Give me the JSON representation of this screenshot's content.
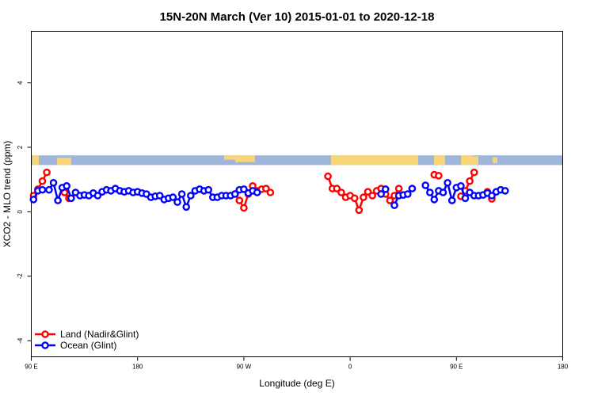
{
  "chart_data": {
    "type": "line",
    "title": "15N-20N March (Ver 10)   2015-01-01 to 2020-12-18",
    "xlabel": "Longitude (deg E)",
    "ylabel": "XCO2 - MLO trend (ppm)",
    "xlim": [
      90,
      450
    ],
    "ylim": [
      -4.5,
      5.6
    ],
    "x_ticks": [
      {
        "value": 90,
        "label": "90 E"
      },
      {
        "value": 162,
        "label": "180"
      },
      {
        "value": 234,
        "label": "90 W"
      },
      {
        "value": 306,
        "label": "0"
      },
      {
        "value": 378,
        "label": "90 E"
      },
      {
        "value": 450,
        "label": "180"
      }
    ],
    "y_ticks": [
      {
        "value": -4,
        "label": "-4"
      },
      {
        "value": -2,
        "label": "-2"
      },
      {
        "value": 0,
        "label": "0"
      },
      {
        "value": 2,
        "label": "2"
      },
      {
        "value": 4,
        "label": "4"
      }
    ],
    "grid": false,
    "legend_position": "bottom-left",
    "map_strip": {
      "ymin": 1.45,
      "ymax": 1.75,
      "ocean_color": "#9fb6da",
      "land_color": "#f7d67a"
    },
    "series": [
      {
        "name": "Land (Nadir&Glint)",
        "color": "#ff0000",
        "segments": [
          [
            [
              91.5,
              0.5
            ],
            [
              94.5,
              0.7
            ],
            [
              97.5,
              0.95
            ],
            [
              100.5,
              1.22
            ]
          ],
          [
            [
              112.5,
              0.6
            ],
            [
              115.5,
              0.42
            ]
          ],
          [
            [
              228,
              0.55
            ],
            [
              231,
              0.35
            ],
            [
              234,
              0.12
            ],
            [
              237,
              0.55
            ],
            [
              240,
              0.8
            ],
            [
              243,
              0.65
            ],
            [
              246,
              0.7
            ],
            [
              249,
              0.72
            ],
            [
              252,
              0.6
            ]
          ],
          [
            [
              291,
              1.1
            ],
            [
              294,
              0.72
            ],
            [
              297,
              0.72
            ],
            [
              300,
              0.6
            ],
            [
              303,
              0.45
            ],
            [
              306,
              0.5
            ],
            [
              309,
              0.42
            ],
            [
              312,
              0.05
            ],
            [
              315,
              0.45
            ],
            [
              318,
              0.62
            ],
            [
              321,
              0.5
            ],
            [
              324,
              0.65
            ],
            [
              327,
              0.72
            ],
            [
              330,
              0.55
            ],
            [
              333,
              0.35
            ],
            [
              336,
              0.5
            ],
            [
              339,
              0.72
            ]
          ],
          [
            [
              363,
              1.15
            ],
            [
              366,
              1.12
            ]
          ],
          [
            [
              381,
              0.48
            ],
            [
              384,
              0.65
            ],
            [
              387,
              0.95
            ],
            [
              390,
              1.22
            ]
          ],
          [
            [
              399,
              0.62
            ],
            [
              402,
              0.4
            ]
          ]
        ]
      },
      {
        "name": "Ocean (Glint)",
        "color": "#0000ff",
        "segments": [
          [
            [
              91.5,
              0.38
            ],
            [
              94.5,
              0.65
            ],
            [
              97.5,
              0.68
            ],
            [
              102,
              0.68
            ],
            [
              105,
              0.9
            ],
            [
              108,
              0.35
            ],
            [
              111,
              0.75
            ],
            [
              114,
              0.8
            ],
            [
              117,
              0.42
            ],
            [
              120,
              0.6
            ],
            [
              123,
              0.5
            ],
            [
              126,
              0.52
            ],
            [
              129,
              0.5
            ],
            [
              132,
              0.58
            ],
            [
              135,
              0.5
            ],
            [
              138,
              0.62
            ],
            [
              141,
              0.68
            ],
            [
              144,
              0.65
            ],
            [
              147,
              0.72
            ],
            [
              150,
              0.65
            ],
            [
              153,
              0.62
            ],
            [
              156,
              0.65
            ],
            [
              159,
              0.6
            ],
            [
              162,
              0.62
            ],
            [
              165,
              0.58
            ],
            [
              168,
              0.55
            ],
            [
              171,
              0.45
            ],
            [
              174,
              0.48
            ],
            [
              177,
              0.5
            ],
            [
              180,
              0.38
            ],
            [
              183,
              0.42
            ],
            [
              186,
              0.45
            ],
            [
              189,
              0.3
            ],
            [
              192,
              0.55
            ],
            [
              195,
              0.15
            ],
            [
              198,
              0.5
            ],
            [
              201,
              0.65
            ],
            [
              204,
              0.7
            ],
            [
              207,
              0.65
            ],
            [
              210,
              0.68
            ],
            [
              213,
              0.45
            ],
            [
              216,
              0.45
            ],
            [
              219,
              0.5
            ],
            [
              222,
              0.5
            ],
            [
              225,
              0.5
            ],
            [
              228,
              0.55
            ],
            [
              231,
              0.68
            ],
            [
              234,
              0.7
            ],
            [
              237,
              0.58
            ],
            [
              240,
              0.65
            ],
            [
              243,
              0.6
            ]
          ],
          [
            [
              327,
              0.55
            ],
            [
              330,
              0.7
            ]
          ],
          [
            [
              336,
              0.2
            ],
            [
              339,
              0.5
            ],
            [
              342,
              0.52
            ],
            [
              345,
              0.55
            ],
            [
              348,
              0.72
            ]
          ],
          [
            [
              357,
              0.82
            ],
            [
              360,
              0.6
            ],
            [
              363,
              0.38
            ],
            [
              366,
              0.65
            ],
            [
              369,
              0.6
            ],
            [
              372,
              0.9
            ],
            [
              375,
              0.35
            ],
            [
              378,
              0.75
            ],
            [
              381,
              0.8
            ],
            [
              384,
              0.42
            ],
            [
              387,
              0.6
            ],
            [
              390,
              0.5
            ],
            [
              393,
              0.5
            ],
            [
              396,
              0.52
            ],
            [
              399,
              0.58
            ],
            [
              402,
              0.5
            ],
            [
              405,
              0.62
            ],
            [
              408,
              0.68
            ],
            [
              411,
              0.65
            ]
          ]
        ]
      }
    ]
  }
}
